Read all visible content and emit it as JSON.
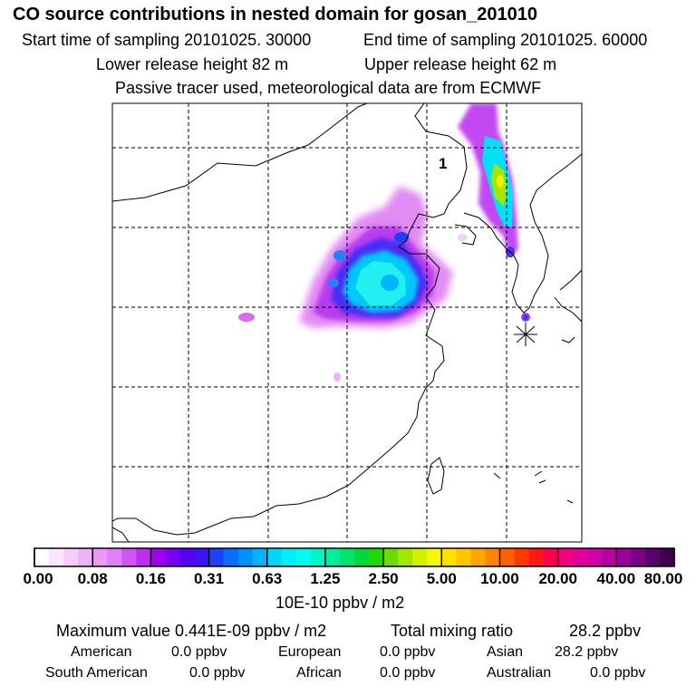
{
  "header": {
    "title": "CO  source contributions in nested domain for gosan_201010",
    "start_label": "Start time of sampling 20101025. 30000",
    "end_label": "End time of sampling 20101025. 60000",
    "lower_release": "Lower release height   82 m",
    "upper_release": "Upper release height   62 m",
    "tracer_note": "Passive tracer used, meteorological data are from ECMWF"
  },
  "map": {
    "annotation": "1",
    "receptor_marker": "star-marker"
  },
  "colorbar": {
    "tick_labels": [
      "0.00",
      "0.08",
      "0.16",
      "0.31",
      "0.63",
      "1.25",
      "2.50",
      "5.00",
      "10.00",
      "20.00",
      "40.00",
      "80.00"
    ],
    "unit": "10E-10 ppbv / m2",
    "colors": [
      "#ffffff",
      "#fbe6fd",
      "#f6ccfb",
      "#f0b3fa",
      "#eb99f8",
      "#e07ff7",
      "#d055f5",
      "#bf2df2",
      "#a100ee",
      "#7a00f0",
      "#5a00f2",
      "#3a14f5",
      "#1e40f8",
      "#0b6dfb",
      "#0090fd",
      "#00b4fd",
      "#00d6fd",
      "#00f0f8",
      "#00fcec",
      "#00f5c6",
      "#00ee9d",
      "#00e36c",
      "#00d83b",
      "#22d800",
      "#6ddc00",
      "#a6e500",
      "#d4ef00",
      "#f7f700",
      "#ffe000",
      "#ffc400",
      "#ffa500",
      "#ff8500",
      "#ff6100",
      "#ff3a00",
      "#ff1616",
      "#ff0050",
      "#f50080",
      "#e5009a",
      "#d000a5",
      "#b800a5",
      "#9c009a",
      "#7c0083",
      "#5c006a",
      "#3c004d"
    ]
  },
  "stats": {
    "max_value": "Maximum value  0.441E-09 ppbv / m2",
    "total_label": "Total mixing ratio",
    "total_value": "28.2 ppbv",
    "regions": [
      {
        "label": "American",
        "value": "0.0 ppbv"
      },
      {
        "label": "European",
        "value": "0.0 ppbv"
      },
      {
        "label": "Asian",
        "value": "28.2 ppbv"
      },
      {
        "label": "South American",
        "value": "0.0 ppbv"
      },
      {
        "label": "African",
        "value": "0.0 ppbv"
      },
      {
        "label": "Australian",
        "value": "0.0 ppbv"
      }
    ]
  }
}
